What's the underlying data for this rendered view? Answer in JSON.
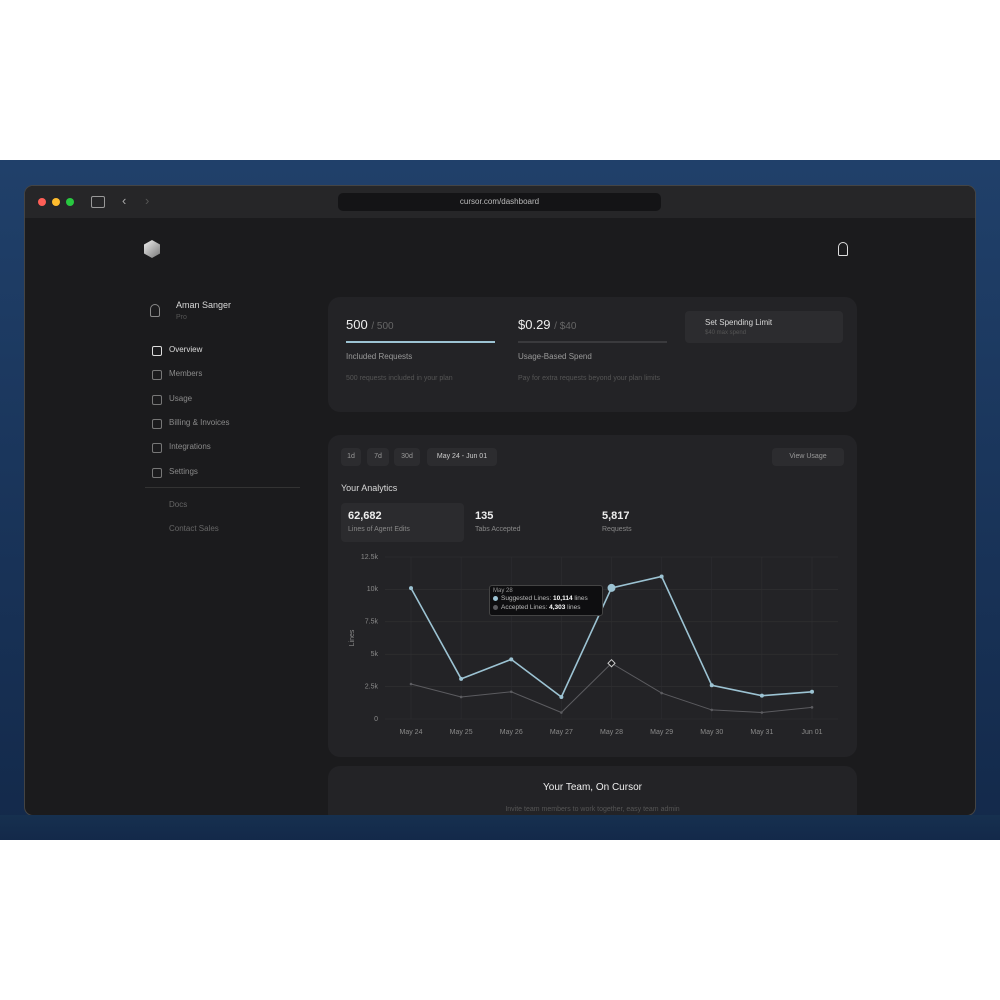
{
  "browser": {
    "url": "cursor.com/dashboard"
  },
  "user": {
    "name": "Aman Sanger",
    "plan": "Pro"
  },
  "nav": {
    "items": [
      "Overview",
      "Members",
      "Usage",
      "Billing & Invoices",
      "Integrations",
      "Settings"
    ],
    "secondary": [
      "Docs",
      "Contact Sales"
    ]
  },
  "usage": {
    "included": {
      "used": "500",
      "limit": "/ 500",
      "label": "Included Requests",
      "note": "500 requests included in your plan"
    },
    "spend": {
      "used": "$0.29",
      "limit": "/ $40",
      "label": "Usage-Based Spend",
      "note": "Pay for extra requests beyond your plan limits"
    },
    "spending_limit": {
      "title": "Set Spending Limit",
      "note": "$40 max spend"
    }
  },
  "analytics": {
    "ranges": [
      "1d",
      "7d",
      "30d",
      "May 24 - Jun 01"
    ],
    "view_usage": "View Usage",
    "title": "Your Analytics",
    "stats": [
      {
        "value": "62,682",
        "label": "Lines of Agent Edits"
      },
      {
        "value": "135",
        "label": "Tabs Accepted"
      },
      {
        "value": "5,817",
        "label": "Requests"
      }
    ],
    "tooltip": {
      "date": "May 28",
      "items": [
        {
          "label": "Suggested Lines:",
          "value": "10,114",
          "unit": "lines"
        },
        {
          "label": "Accepted Lines:",
          "value": "4,303",
          "unit": "lines"
        }
      ]
    }
  },
  "chart_data": {
    "type": "line",
    "y_label": "Lines",
    "categories": [
      "May 24",
      "May 25",
      "May 26",
      "May 27",
      "May 28",
      "May 29",
      "May 30",
      "May 31",
      "Jun 01"
    ],
    "series": [
      {
        "color": "#9cc3d3",
        "values": [
          10100,
          3100,
          4600,
          1700,
          10114,
          11000,
          2600,
          1800,
          2100
        ]
      },
      {
        "color": "#5c5c60",
        "values": [
          2700,
          1700,
          2100,
          500,
          4303,
          2000,
          700,
          500,
          900
        ]
      }
    ],
    "ylim": [
      0,
      12500
    ],
    "yticks": [
      0,
      {
        "value": 2500,
        "label": "2.5k"
      },
      {
        "value": 5000,
        "label": "5k"
      },
      {
        "value": 7500,
        "label": "7.5k"
      },
      {
        "value": 10000,
        "label": "10k"
      },
      {
        "value": 12500,
        "label": "12.5k"
      }
    ],
    "grid": true
  },
  "team": {
    "title": "Your Team, On Cursor",
    "subtitle": "Invite team members to work together, easy team admin"
  }
}
